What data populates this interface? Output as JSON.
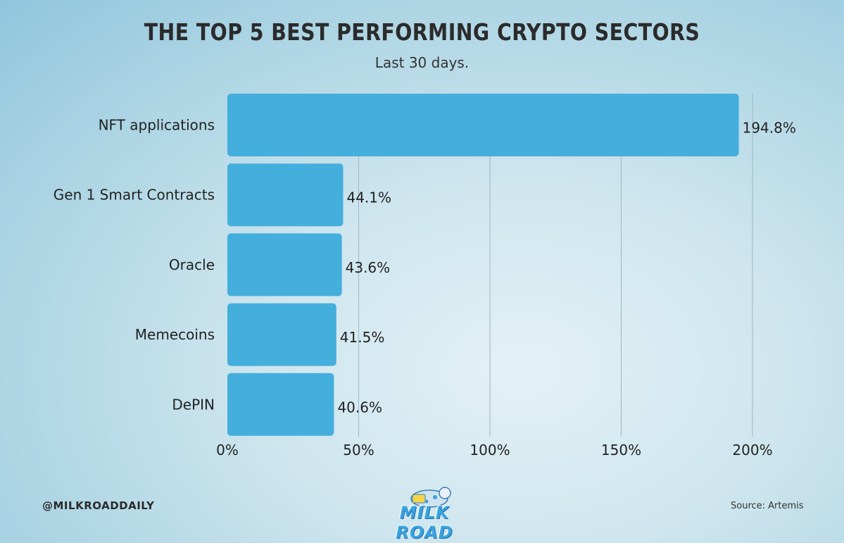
{
  "header": {
    "title": "THE TOP 5 BEST PERFORMING CRYPTO SECTORS",
    "subtitle": "Last 30 days."
  },
  "footer": {
    "handle": "@MILKROADDAILY",
    "source": "Source: Artemis",
    "logo_text": "MILK ROAD"
  },
  "colors": {
    "bar": "#44aedd",
    "grid": "#9fb6c0",
    "text": "#222222"
  },
  "chart_data": {
    "type": "bar",
    "orientation": "horizontal",
    "categories": [
      "NFT applications",
      "Gen 1 Smart Contracts",
      "Oracle",
      "Memecoins",
      "DePIN"
    ],
    "values": [
      194.8,
      44.1,
      43.6,
      41.5,
      40.6
    ],
    "value_labels": [
      "194.8%",
      "44.1%",
      "43.6%",
      "41.5%",
      "40.6%"
    ],
    "x_ticks": [
      0,
      50,
      100,
      150,
      200
    ],
    "x_tick_labels": [
      "0%",
      "50%",
      "100%",
      "150%",
      "200%"
    ],
    "xlim": [
      0,
      200
    ],
    "grid": true
  }
}
